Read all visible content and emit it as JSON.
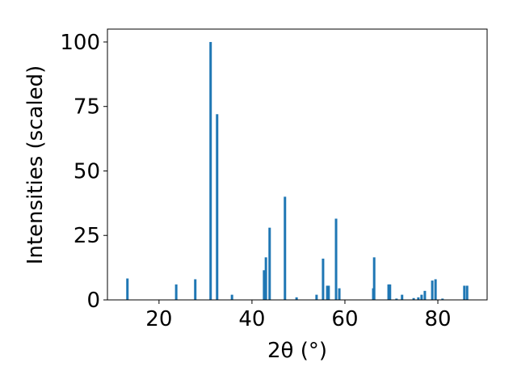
{
  "chart_data": {
    "type": "bar",
    "xlabel": "2θ (°)",
    "ylabel": "Intensities (scaled)",
    "x": [
      13.2,
      23.7,
      27.8,
      31.1,
      32.5,
      35.7,
      42.6,
      43.0,
      43.8,
      47.1,
      49.6,
      53.9,
      55.3,
      56.2,
      56.5,
      58.1,
      58.8,
      66.1,
      66.3,
      69.4,
      69.7,
      71.1,
      72.3,
      74.8,
      75.8,
      76.5,
      77.2,
      78.8,
      79.5,
      81.0,
      85.7,
      86.3
    ],
    "values": [
      8.3,
      6,
      8,
      100,
      72,
      2,
      11.5,
      16.5,
      28,
      40,
      1,
      2,
      16,
      5.5,
      5.5,
      31.5,
      4.5,
      4.5,
      16.5,
      6,
      6,
      0.5,
      2,
      0.7,
      1,
      2,
      3.5,
      7.5,
      8,
      0.5,
      5.5,
      5.5
    ],
    "color": "#1f77b4",
    "xlim": [
      8.9,
      90.6
    ],
    "xticks": [
      20,
      40,
      60,
      80
    ],
    "ylim": [
      0,
      105
    ],
    "yticks": [
      0,
      25,
      50,
      75,
      100
    ],
    "grid": false
  }
}
